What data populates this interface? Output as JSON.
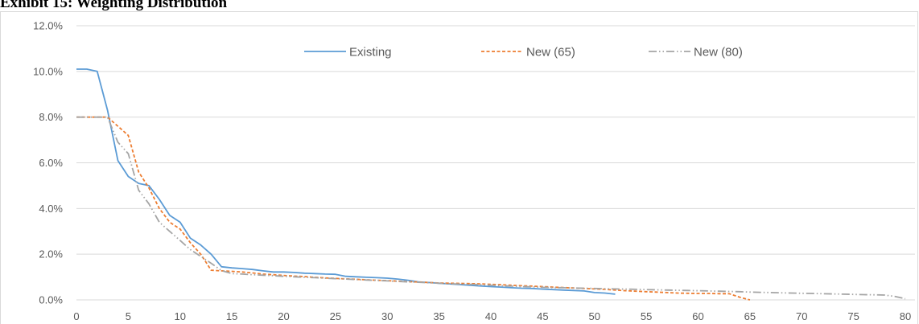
{
  "exhibit": {
    "title": "Exhibit 15: Weighting Distribution"
  },
  "chart_data": {
    "type": "line",
    "title": "",
    "xlabel": "",
    "ylabel": "",
    "xlim": [
      0,
      80
    ],
    "ylim": [
      0,
      0.12
    ],
    "x_ticks": [
      "0",
      "5",
      "10",
      "15",
      "20",
      "25",
      "30",
      "35",
      "40",
      "45",
      "50",
      "55",
      "60",
      "65",
      "70",
      "75",
      "80"
    ],
    "y_ticks": [
      "0.0%",
      "2.0%",
      "4.0%",
      "6.0%",
      "8.0%",
      "10.0%",
      "12.0%"
    ],
    "grid": true,
    "legend_position": "top",
    "series": [
      {
        "name": "Existing",
        "color": "#5b9bd5",
        "dash": "solid",
        "points": [
          [
            0,
            0.101
          ],
          [
            1,
            0.101
          ],
          [
            2,
            0.1
          ],
          [
            3,
            0.083
          ],
          [
            4,
            0.061
          ],
          [
            5,
            0.054
          ],
          [
            6,
            0.051
          ],
          [
            7,
            0.05
          ],
          [
            8,
            0.044
          ],
          [
            9,
            0.037
          ],
          [
            10,
            0.034
          ],
          [
            11,
            0.027
          ],
          [
            12,
            0.024
          ],
          [
            13,
            0.02
          ],
          [
            14,
            0.0145
          ],
          [
            15,
            0.014
          ],
          [
            16,
            0.0137
          ],
          [
            17,
            0.0133
          ],
          [
            18,
            0.0127
          ],
          [
            19,
            0.0122
          ],
          [
            20,
            0.0122
          ],
          [
            21,
            0.012
          ],
          [
            22,
            0.0117
          ],
          [
            23,
            0.0115
          ],
          [
            24,
            0.0113
          ],
          [
            25,
            0.0112
          ],
          [
            26,
            0.0103
          ],
          [
            27,
            0.0101
          ],
          [
            28,
            0.0099
          ],
          [
            29,
            0.0097
          ],
          [
            30,
            0.0095
          ],
          [
            31,
            0.0091
          ],
          [
            32,
            0.0086
          ],
          [
            33,
            0.0079
          ],
          [
            34,
            0.0076
          ],
          [
            35,
            0.0073
          ],
          [
            36,
            0.007
          ],
          [
            37,
            0.0067
          ],
          [
            38,
            0.0064
          ],
          [
            39,
            0.0061
          ],
          [
            40,
            0.0058
          ],
          [
            41,
            0.0056
          ],
          [
            42,
            0.0053
          ],
          [
            43,
            0.0051
          ],
          [
            44,
            0.005
          ],
          [
            45,
            0.0047
          ],
          [
            46,
            0.0045
          ],
          [
            47,
            0.0043
          ],
          [
            48,
            0.0041
          ],
          [
            49,
            0.0039
          ],
          [
            50,
            0.0032
          ],
          [
            51,
            0.003
          ],
          [
            52,
            0.0025
          ]
        ]
      },
      {
        "name": "New (65)",
        "color": "#ed7d31",
        "dash": "short-dash",
        "points": [
          [
            0,
            0.08
          ],
          [
            1,
            0.08
          ],
          [
            2,
            0.08
          ],
          [
            3,
            0.08
          ],
          [
            4,
            0.076
          ],
          [
            5,
            0.072
          ],
          [
            6,
            0.056
          ],
          [
            7,
            0.049
          ],
          [
            8,
            0.04
          ],
          [
            9,
            0.034
          ],
          [
            10,
            0.031
          ],
          [
            11,
            0.025
          ],
          [
            12,
            0.02
          ],
          [
            13,
            0.013
          ],
          [
            14,
            0.0127
          ],
          [
            15,
            0.0125
          ],
          [
            16,
            0.0122
          ],
          [
            17,
            0.0118
          ],
          [
            18,
            0.0113
          ],
          [
            19,
            0.011
          ],
          [
            20,
            0.0107
          ],
          [
            21,
            0.0104
          ],
          [
            22,
            0.0102
          ],
          [
            23,
            0.0099
          ],
          [
            24,
            0.0096
          ],
          [
            25,
            0.0094
          ],
          [
            26,
            0.0092
          ],
          [
            27,
            0.009
          ],
          [
            28,
            0.0088
          ],
          [
            29,
            0.0086
          ],
          [
            30,
            0.0084
          ],
          [
            31,
            0.0082
          ],
          [
            32,
            0.008
          ],
          [
            33,
            0.0078
          ],
          [
            34,
            0.0076
          ],
          [
            35,
            0.0074
          ],
          [
            36,
            0.0073
          ],
          [
            37,
            0.0072
          ],
          [
            38,
            0.0071
          ],
          [
            39,
            0.007
          ],
          [
            40,
            0.0068
          ],
          [
            41,
            0.0066
          ],
          [
            42,
            0.0064
          ],
          [
            43,
            0.0062
          ],
          [
            44,
            0.006
          ],
          [
            45,
            0.0058
          ],
          [
            46,
            0.0056
          ],
          [
            47,
            0.0054
          ],
          [
            48,
            0.0052
          ],
          [
            49,
            0.005
          ],
          [
            50,
            0.0048
          ],
          [
            51,
            0.0046
          ],
          [
            52,
            0.0043
          ],
          [
            53,
            0.004
          ],
          [
            54,
            0.0038
          ],
          [
            55,
            0.0036
          ],
          [
            56,
            0.0034
          ],
          [
            57,
            0.0032
          ],
          [
            58,
            0.003
          ],
          [
            59,
            0.0029
          ],
          [
            60,
            0.0028
          ],
          [
            61,
            0.0028
          ],
          [
            62,
            0.0027
          ],
          [
            63,
            0.0027
          ],
          [
            64,
            0.0012
          ],
          [
            65,
            0
          ]
        ]
      },
      {
        "name": "New (80)",
        "color": "#a5a5a5",
        "dash": "dash-dot-dot",
        "points": [
          [
            0,
            0.08
          ],
          [
            1,
            0.08
          ],
          [
            2,
            0.08
          ],
          [
            3,
            0.08
          ],
          [
            4,
            0.069
          ],
          [
            5,
            0.064
          ],
          [
            6,
            0.048
          ],
          [
            7,
            0.042
          ],
          [
            8,
            0.034
          ],
          [
            9,
            0.03
          ],
          [
            10,
            0.026
          ],
          [
            11,
            0.022
          ],
          [
            12,
            0.019
          ],
          [
            13,
            0.016
          ],
          [
            14,
            0.0128
          ],
          [
            15,
            0.0115
          ],
          [
            16,
            0.0113
          ],
          [
            17,
            0.011
          ],
          [
            18,
            0.0108
          ],
          [
            19,
            0.0106
          ],
          [
            20,
            0.0103
          ],
          [
            21,
            0.0101
          ],
          [
            22,
            0.0099
          ],
          [
            23,
            0.0097
          ],
          [
            24,
            0.0095
          ],
          [
            25,
            0.0093
          ],
          [
            26,
            0.0091
          ],
          [
            27,
            0.0089
          ],
          [
            28,
            0.0087
          ],
          [
            29,
            0.0085
          ],
          [
            30,
            0.0083
          ],
          [
            31,
            0.0081
          ],
          [
            32,
            0.0079
          ],
          [
            33,
            0.0077
          ],
          [
            34,
            0.0075
          ],
          [
            35,
            0.0073
          ],
          [
            36,
            0.0071
          ],
          [
            37,
            0.0069
          ],
          [
            38,
            0.0068
          ],
          [
            39,
            0.0066
          ],
          [
            40,
            0.0064
          ],
          [
            41,
            0.0062
          ],
          [
            42,
            0.006
          ],
          [
            43,
            0.0058
          ],
          [
            44,
            0.0057
          ],
          [
            45,
            0.0055
          ],
          [
            46,
            0.0054
          ],
          [
            47,
            0.0053
          ],
          [
            48,
            0.0052
          ],
          [
            49,
            0.0051
          ],
          [
            50,
            0.005
          ],
          [
            51,
            0.0049
          ],
          [
            52,
            0.0048
          ],
          [
            53,
            0.0047
          ],
          [
            54,
            0.0046
          ],
          [
            55,
            0.0045
          ],
          [
            56,
            0.0044
          ],
          [
            57,
            0.0043
          ],
          [
            58,
            0.0042
          ],
          [
            59,
            0.0041
          ],
          [
            60,
            0.004
          ],
          [
            61,
            0.0039
          ],
          [
            62,
            0.0038
          ],
          [
            63,
            0.0037
          ],
          [
            64,
            0.0036
          ],
          [
            65,
            0.0034
          ],
          [
            66,
            0.0033
          ],
          [
            67,
            0.0032
          ],
          [
            68,
            0.0031
          ],
          [
            69,
            0.003
          ],
          [
            70,
            0.0029
          ],
          [
            71,
            0.0028
          ],
          [
            72,
            0.0027
          ],
          [
            73,
            0.0026
          ],
          [
            74,
            0.0025
          ],
          [
            75,
            0.0024
          ],
          [
            76,
            0.0023
          ],
          [
            77,
            0.0022
          ],
          [
            78,
            0.0021
          ],
          [
            79,
            0.0015
          ],
          [
            80,
            0.0005
          ]
        ]
      }
    ]
  }
}
